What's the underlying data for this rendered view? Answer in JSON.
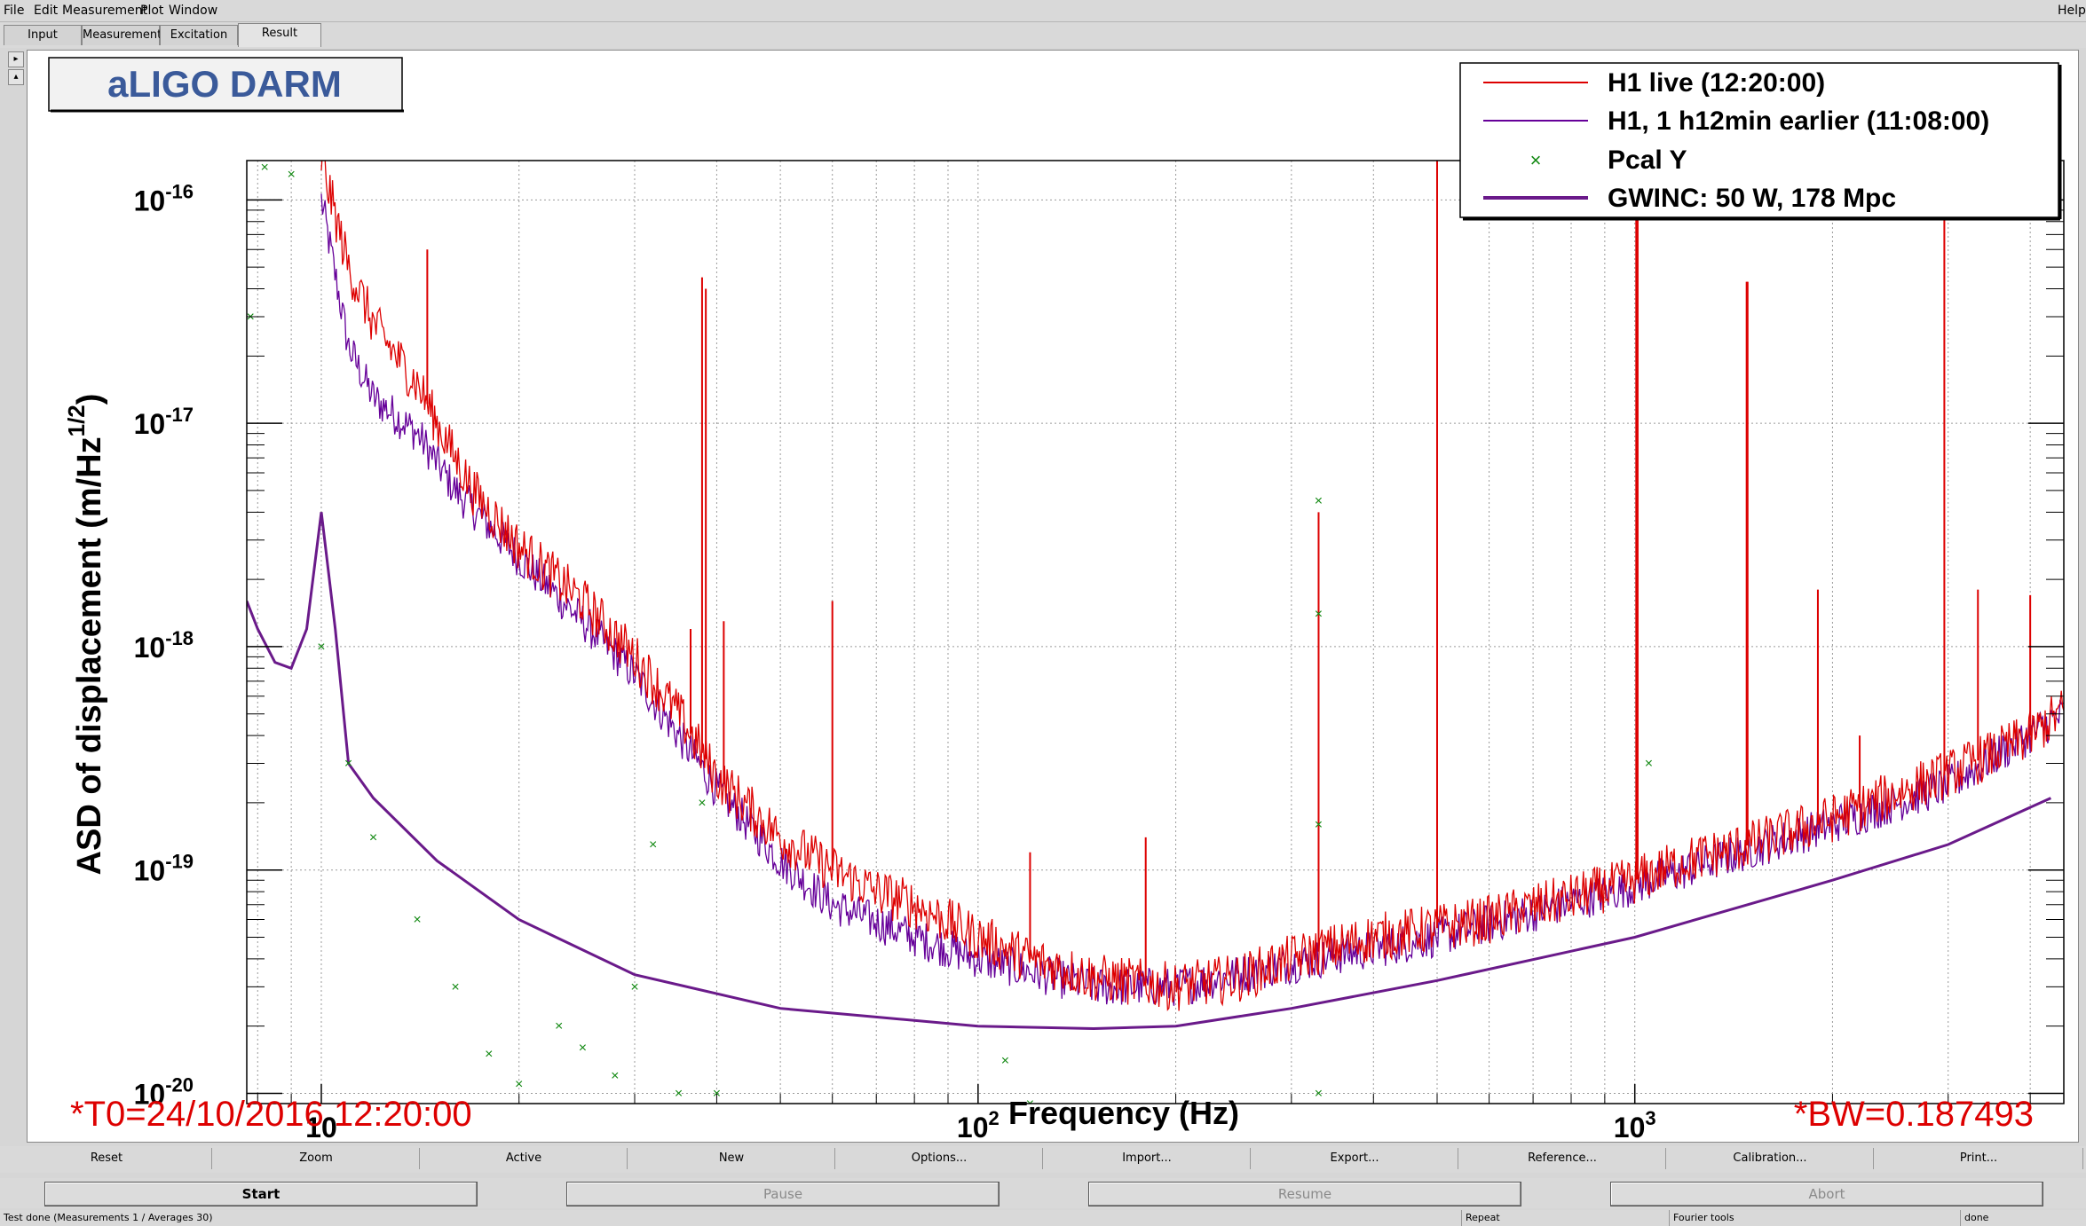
{
  "menu": {
    "file": "File",
    "edit": "Edit",
    "measurement": "Measurement",
    "plot": "Plot",
    "window": "Window",
    "help": "Help"
  },
  "tabs": {
    "input": "Input",
    "measurement": "Measurement",
    "excitation": "Excitation",
    "result": "Result"
  },
  "plot": {
    "title": "aLIGO DARM",
    "xlabel": "Frequency (Hz)",
    "ylabel": "ASD of displacement (m/Hz",
    "ylabel_exp": "1/2",
    "ylabel_close": ")",
    "t0_text": "*T0=24/10/2016 12:20:00",
    "bw_text": "*BW=0.187493",
    "legend": {
      "live": "H1 live (12:20:00)",
      "earlier": "H1, 1 h12min earlier (11:08:00)",
      "pcal": "Pcal Y",
      "gwinc": "GWINC: 50 W, 178 Mpc"
    },
    "x_ticks": [
      {
        "base": "10",
        "exp": ""
      },
      {
        "base": "10",
        "exp": "2"
      },
      {
        "base": "10",
        "exp": "3"
      }
    ],
    "y_ticks": [
      {
        "base": "10",
        "exp": "-16"
      },
      {
        "base": "10",
        "exp": "-17"
      },
      {
        "base": "10",
        "exp": "-18"
      },
      {
        "base": "10",
        "exp": "-19"
      },
      {
        "base": "10",
        "exp": "-20"
      }
    ]
  },
  "chart_data": {
    "type": "line",
    "title": "aLIGO DARM",
    "xlabel": "Frequency (Hz)",
    "ylabel": "ASD of displacement (m/Hz^1/2)",
    "x_scale": "log",
    "y_scale": "log",
    "xlim": [
      7.7,
      4500
    ],
    "ylim": [
      9e-21,
      1.5e-16
    ],
    "grid": true,
    "legend_position": "top-right",
    "series": [
      {
        "name": "H1 live (12:20:00)",
        "color": "#dd0000",
        "points": [
          [
            10,
            1.5e-16
          ],
          [
            11,
            5e-17
          ],
          [
            12,
            2.8e-17
          ],
          [
            13,
            2e-17
          ],
          [
            14,
            1.5e-17
          ],
          [
            15,
            1e-17
          ],
          [
            17,
            5e-18
          ],
          [
            20,
            2.8e-18
          ],
          [
            25,
            1.6e-18
          ],
          [
            30,
            9e-19
          ],
          [
            35,
            5e-19
          ],
          [
            40,
            2.6e-19
          ],
          [
            50,
            1.4e-19
          ],
          [
            60,
            1e-19
          ],
          [
            70,
            8e-20
          ],
          [
            80,
            7e-20
          ],
          [
            100,
            5e-20
          ],
          [
            120,
            4e-20
          ],
          [
            150,
            3.3e-20
          ],
          [
            200,
            3e-20
          ],
          [
            250,
            3.3e-20
          ],
          [
            300,
            4e-20
          ],
          [
            400,
            5e-20
          ],
          [
            500,
            5.5e-20
          ],
          [
            600,
            6e-20
          ],
          [
            700,
            6.8e-20
          ],
          [
            800,
            7.5e-20
          ],
          [
            1000,
            9e-20
          ],
          [
            1200,
            1.1e-19
          ],
          [
            1500,
            1.3e-19
          ],
          [
            2000,
            1.7e-19
          ],
          [
            2500,
            2.2e-19
          ],
          [
            3000,
            2.7e-19
          ],
          [
            3500,
            3.3e-19
          ],
          [
            4000,
            4e-19
          ],
          [
            4500,
            5.2e-19
          ]
        ],
        "peaks": [
          [
            14.5,
            6e-17
          ],
          [
            36.5,
            1.2e-18
          ],
          [
            38,
            4.5e-17
          ],
          [
            38.5,
            4e-17
          ],
          [
            41,
            1.3e-18
          ],
          [
            60,
            1.6e-18
          ],
          [
            120,
            1.2e-19
          ],
          [
            180,
            1.4e-19
          ],
          [
            330,
            4e-18
          ],
          [
            500,
            1.6e-16
          ],
          [
            1005,
            1.6e-16
          ],
          [
            1010,
            1.6e-16
          ],
          [
            1480,
            4.3e-17
          ],
          [
            1485,
            4.3e-17
          ],
          [
            1900,
            1.8e-18
          ],
          [
            2200,
            4e-19
          ],
          [
            2960,
            1.6e-16
          ],
          [
            3330,
            1.8e-18
          ],
          [
            4000,
            1.7e-18
          ]
        ]
      },
      {
        "name": "H1, 1 h12min earlier (11:08:00)",
        "color": "#660099",
        "points": [
          [
            10,
            1e-16
          ],
          [
            11,
            2.2e-17
          ],
          [
            12,
            1.3e-17
          ],
          [
            14,
            9e-18
          ],
          [
            16,
            5e-18
          ],
          [
            20,
            2.5e-18
          ],
          [
            25,
            1.3e-18
          ],
          [
            30,
            7.5e-19
          ],
          [
            35,
            4e-19
          ],
          [
            40,
            2.3e-19
          ],
          [
            50,
            1.1e-19
          ],
          [
            60,
            7e-20
          ],
          [
            80,
            5e-20
          ],
          [
            100,
            4e-20
          ],
          [
            150,
            3e-20
          ],
          [
            200,
            3e-20
          ],
          [
            300,
            3.8e-20
          ],
          [
            500,
            5e-20
          ],
          [
            1000,
            8.5e-20
          ],
          [
            2000,
            1.6e-19
          ],
          [
            3000,
            2.4e-19
          ],
          [
            4500,
            5e-19
          ]
        ]
      },
      {
        "name": "Pcal Y",
        "color": "#118811",
        "marker": "x",
        "points": [
          [
            7.8,
            3e-17
          ],
          [
            8.2,
            1.4e-16
          ],
          [
            9,
            1.3e-16
          ],
          [
            10,
            1e-18
          ],
          [
            11,
            3e-19
          ],
          [
            12,
            1.4e-19
          ],
          [
            14,
            6e-20
          ],
          [
            16,
            3e-20
          ],
          [
            18,
            1.5e-20
          ],
          [
            20,
            1.1e-20
          ],
          [
            23,
            2e-20
          ],
          [
            25,
            1.6e-20
          ],
          [
            28,
            1.2e-20
          ],
          [
            30,
            3e-20
          ],
          [
            32,
            1.3e-19
          ],
          [
            35,
            1e-20
          ],
          [
            38,
            2e-19
          ],
          [
            40,
            1e-20
          ],
          [
            110,
            1.4e-20
          ],
          [
            120,
            9e-21
          ],
          [
            330,
            4.5e-18
          ],
          [
            330,
            1.4e-18
          ],
          [
            330,
            1.6e-19
          ],
          [
            330,
            1e-20
          ],
          [
            1050,
            3e-19
          ]
        ]
      },
      {
        "name": "GWINC: 50 W, 178 Mpc",
        "color": "#6a1a8a",
        "points": [
          [
            7.7,
            1.6e-18
          ],
          [
            8,
            1.2e-18
          ],
          [
            8.5,
            8.5e-19
          ],
          [
            9,
            8e-19
          ],
          [
            9.5,
            1.2e-18
          ],
          [
            10,
            4e-18
          ],
          [
            10.5,
            1.2e-18
          ],
          [
            11,
            3e-19
          ],
          [
            12,
            2.1e-19
          ],
          [
            15,
            1.1e-19
          ],
          [
            20,
            6e-20
          ],
          [
            30,
            3.4e-20
          ],
          [
            50,
            2.4e-20
          ],
          [
            100,
            2e-20
          ],
          [
            150,
            1.95e-20
          ],
          [
            200,
            2e-20
          ],
          [
            300,
            2.4e-20
          ],
          [
            500,
            3.2e-20
          ],
          [
            1000,
            5e-20
          ],
          [
            2000,
            9e-20
          ],
          [
            3000,
            1.3e-19
          ],
          [
            4300,
            2.1e-19
          ]
        ]
      }
    ]
  },
  "controls": [
    "Reset",
    "Zoom",
    "Active",
    "New",
    "Options...",
    "Import...",
    "Export...",
    "Reference...",
    "Calibration...",
    "Print..."
  ],
  "run": {
    "start": "Start",
    "pause": "Pause",
    "resume": "Resume",
    "abort": "Abort"
  },
  "status": {
    "main": "Test done (Measurements 1 / Averages 30)",
    "repeat": "Repeat",
    "tools": "Fourier tools",
    "state": "done"
  }
}
